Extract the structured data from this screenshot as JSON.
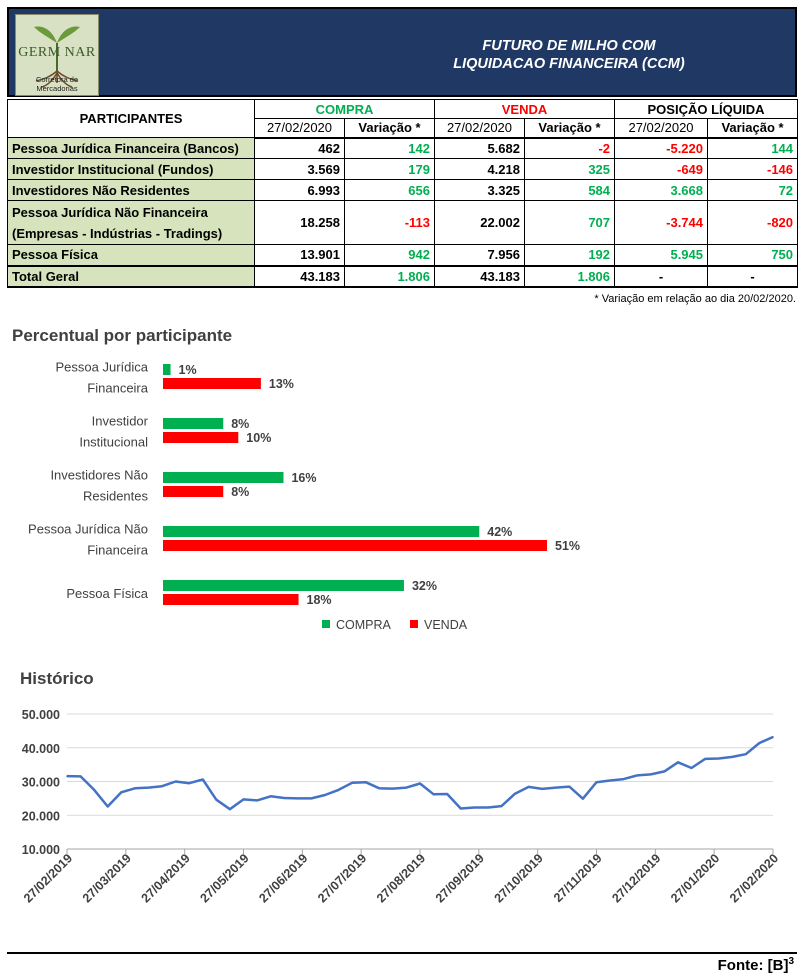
{
  "header": {
    "logo_text": "GERM  NAR",
    "logo_subtitle": "Corretora de Mercadorias",
    "title_line1": "FUTURO DE MILHO COM",
    "title_line2": "LIQUIDACAO FINANCEIRA (CCM)"
  },
  "table": {
    "participants_header": "PARTICIPANTES",
    "group_headers": {
      "compra": "COMPRA",
      "venda": "VENDA",
      "posicao": "POSIÇÃO LÍQUIDA"
    },
    "sub_headers": [
      "27/02/2020",
      "Variação *",
      "27/02/2020",
      "Variação *",
      "27/02/2020",
      "Variação *"
    ],
    "rows": [
      {
        "name": "Pessoa Jurídica Financeira (Bancos)",
        "compra": "462",
        "compra_var": "142",
        "venda": "5.682",
        "venda_var": "-2",
        "pos": "-5.220",
        "pos_var": "144"
      },
      {
        "name": "Investidor Institucional (Fundos)",
        "compra": "3.569",
        "compra_var": "179",
        "venda": "4.218",
        "venda_var": "325",
        "pos": "-649",
        "pos_var": "-146"
      },
      {
        "name": "Investidores Não Residentes",
        "compra": "6.993",
        "compra_var": "656",
        "venda": "3.325",
        "venda_var": "584",
        "pos": "3.668",
        "pos_var": "72"
      },
      {
        "name_line1": "Pessoa Jurídica Não Financeira",
        "name_line2": "(Empresas - Indústrias - Tradings)",
        "compra": "18.258",
        "compra_var": "-113",
        "venda": "22.002",
        "venda_var": "707",
        "pos": "-3.744",
        "pos_var": "-820"
      },
      {
        "name": "Pessoa Física",
        "compra": "13.901",
        "compra_var": "942",
        "venda": "7.956",
        "venda_var": "192",
        "pos": "5.945",
        "pos_var": "750"
      }
    ],
    "total": {
      "name": "Total Geral",
      "compra": "43.183",
      "compra_var": "1.806",
      "venda": "43.183",
      "venda_var": "1.806",
      "pos": "-",
      "pos_var": "-"
    },
    "footnote": "* Variação em relação ao dia 20/02/2020."
  },
  "colors": {
    "header_bg": "#1f3864",
    "participant_bg": "#d6e3bc",
    "green": "#00b050",
    "red": "#ff0000",
    "line": "#4472c4"
  },
  "chart_data": [
    {
      "type": "bar",
      "title": "Percentual por participante",
      "categories": [
        [
          "Pessoa Jurídica",
          "Financeira"
        ],
        [
          "Investidor",
          "Institucional"
        ],
        [
          "Investidores Não",
          "Residentes"
        ],
        [
          "Pessoa Jurídica Não",
          "Financeira"
        ],
        [
          "Pessoa Física"
        ]
      ],
      "series": [
        {
          "name": "COMPRA",
          "color": "#00b050",
          "values": [
            1,
            8,
            16,
            42,
            32
          ],
          "labels": [
            "1%",
            "8%",
            "16%",
            "42%",
            "32%"
          ]
        },
        {
          "name": "VENDA",
          "color": "#ff0000",
          "values": [
            13,
            10,
            8,
            51,
            18
          ],
          "labels": [
            "13%",
            "10%",
            "8%",
            "51%",
            "18%"
          ]
        }
      ],
      "xlim": [
        0,
        100
      ],
      "legend": "bottom"
    },
    {
      "type": "line",
      "title": "Histórico",
      "y_ticks": [
        "50.000",
        "40.000",
        "30.000",
        "20.000",
        "10.000"
      ],
      "ylim": [
        10000,
        50000
      ],
      "x_ticks": [
        "27/02/2019",
        "27/03/2019",
        "27/04/2019",
        "27/05/2019",
        "27/06/2019",
        "27/07/2019",
        "27/08/2019",
        "27/09/2019",
        "27/10/2019",
        "27/11/2019",
        "27/12/2019",
        "27/01/2020",
        "27/02/2020"
      ],
      "values": [
        31600,
        31500,
        27500,
        22600,
        26800,
        28000,
        28200,
        28600,
        30000,
        29500,
        30600,
        24600,
        21800,
        24700,
        24400,
        25600,
        25100,
        25000,
        25000,
        26000,
        27500,
        29600,
        29800,
        28000,
        27900,
        28200,
        29400,
        26200,
        26300,
        22000,
        22300,
        22300,
        22700,
        26400,
        28400,
        27800,
        28200,
        28500,
        24900,
        29800,
        30300,
        30700,
        31800,
        32100,
        33000,
        35700,
        34000,
        36700,
        36800,
        37300,
        38100,
        41400,
        43200
      ],
      "color": "#4472c4"
    }
  ],
  "source": {
    "label": "Fonte: [B]",
    "sup": "3"
  }
}
